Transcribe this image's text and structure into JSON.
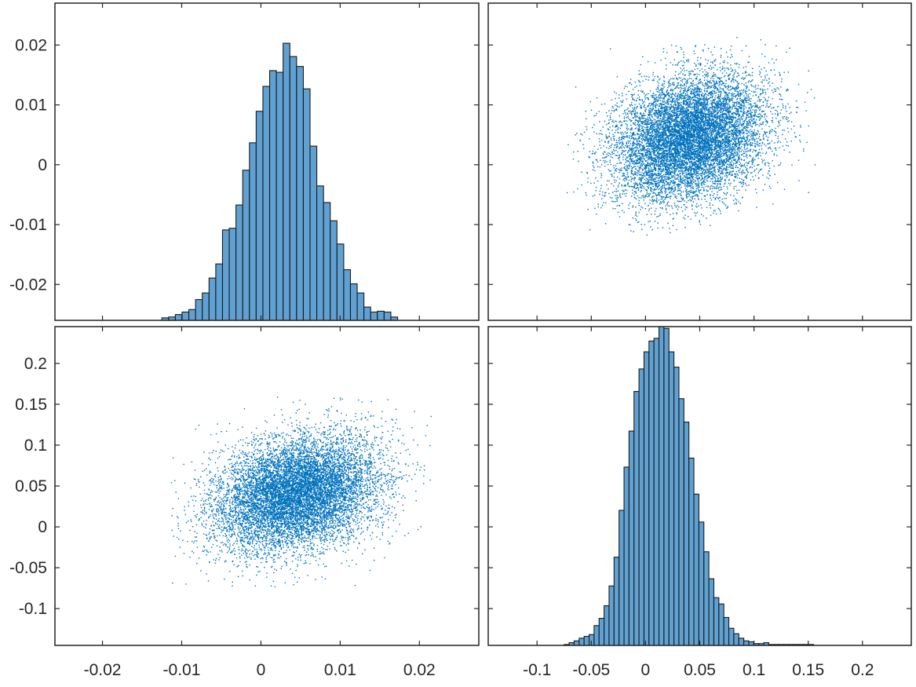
{
  "chart_data": [
    {
      "type": "histogram",
      "panel": "top-left",
      "variable": 1,
      "x_range": [
        -0.0125,
        0.0215
      ],
      "bin_width": 0.00085,
      "y_ticks": [
        -0.02,
        -0.01,
        0,
        0.01,
        0.02
      ],
      "y_tick_labels": [
        "-0.02",
        "-0.01",
        "0",
        "0.01",
        "0.02"
      ],
      "y_range": [
        -0.026,
        0.027
      ],
      "counts_relative": [
        0.3,
        0.4,
        0.7,
        1,
        1.3,
        2.5,
        3.3,
        5.1,
        6.8,
        10.9,
        11.1,
        13.9,
        18.1,
        21.4,
        25.2,
        28.2,
        30.1,
        29.9,
        33.4,
        31.8,
        30.6,
        27.9,
        21.0,
        16.2,
        14.2,
        12.0,
        9.2,
        6.1,
        4.4,
        3.3,
        1.6,
        1.0,
        1.1,
        1.0,
        0.4
      ]
    },
    {
      "type": "scatter",
      "panel": "top-right",
      "x_variable": 2,
      "y_variable": 1,
      "n_points": 10000,
      "x_center": 0.04,
      "x_sd": 0.035,
      "y_center": 0.0045,
      "y_sd": 0.0052,
      "correlation": 0.25,
      "x_range": [
        -0.075,
        0.16
      ],
      "y_range": [
        -0.012,
        0.0215
      ]
    },
    {
      "type": "scatter",
      "panel": "bottom-left",
      "x_variable": 1,
      "y_variable": 2,
      "n_points": 10000,
      "x_center": 0.0045,
      "x_sd": 0.0052,
      "y_center": 0.04,
      "y_sd": 0.035,
      "correlation": 0.25,
      "x_range": [
        -0.012,
        0.0215
      ],
      "y_range": [
        -0.075,
        0.16
      ],
      "x_ticks": [
        -0.02,
        -0.01,
        0,
        0.01,
        0.02
      ],
      "x_tick_labels": [
        "-0.02",
        "-0.01",
        "0",
        "0.01",
        "0.02"
      ],
      "x_axis_range": [
        -0.026,
        0.0275
      ],
      "y_ticks": [
        -0.1,
        -0.05,
        0,
        0.05,
        0.1,
        0.15,
        0.2
      ],
      "y_tick_labels": [
        "-0.1",
        "-0.05",
        "0",
        "0.05",
        "0.1",
        "0.15",
        "0.2"
      ],
      "y_axis_range": [
        -0.145,
        0.245
      ]
    },
    {
      "type": "histogram",
      "panel": "bottom-right",
      "variable": 2,
      "x_range": [
        -0.075,
        0.16
      ],
      "bin_width": 0.0046,
      "x_ticks": [
        -0.1,
        -0.05,
        0,
        0.05,
        0.1,
        0.15,
        0.2
      ],
      "x_tick_labels": [
        "-0.1",
        "-0.05",
        "0",
        "0.05",
        "0.1",
        "0.15",
        "0.2"
      ],
      "x_axis_range": [
        -0.145,
        0.245
      ],
      "counts_relative": [
        0.1,
        0.3,
        0.5,
        0.8,
        1.0,
        1.2,
        2.2,
        3.0,
        4.4,
        6.6,
        9.8,
        15.0,
        19.8,
        23.8,
        28.2,
        30.7,
        32.6,
        33.8,
        34.1,
        35.4,
        35.2,
        32.6,
        30.9,
        27.4,
        24.8,
        20.8,
        16.8,
        13.7,
        10.4,
        7.4,
        5.3,
        4.6,
        3.1,
        1.9,
        1.3,
        0.8,
        0.5,
        0.4,
        0.2,
        0.2,
        0.3,
        0.1,
        0.1,
        0.1,
        0.1,
        0.1,
        0.1,
        0.1,
        0.1,
        0.1
      ]
    }
  ]
}
